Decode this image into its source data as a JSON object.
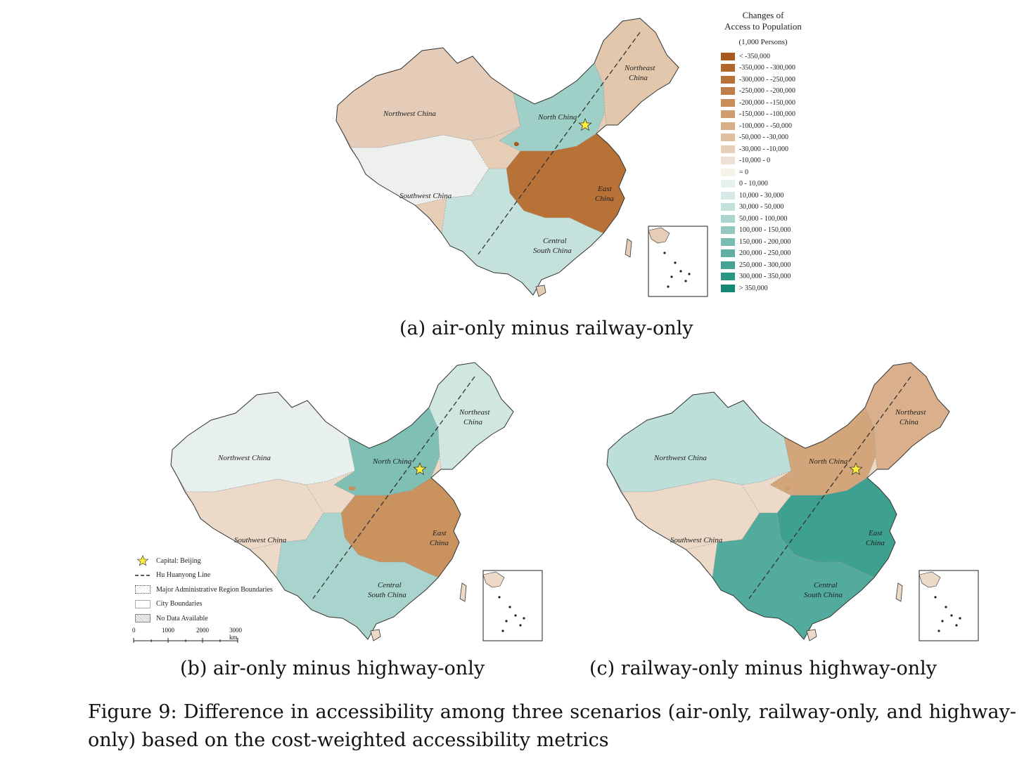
{
  "legend": {
    "title_line1": "Changes of",
    "title_line2": "Access to Population",
    "unit": "(1,000 Persons)",
    "classes": [
      {
        "label": "< -350,000",
        "color": "#a85a1e"
      },
      {
        "label": "-350,000 - -300,000",
        "color": "#b0672b"
      },
      {
        "label": "-300,000 - -250,000",
        "color": "#b87238"
      },
      {
        "label": "-250,000 - -200,000",
        "color": "#c07f48"
      },
      {
        "label": "-200,000 - -150,000",
        "color": "#c98d5a"
      },
      {
        "label": "-150,000 - -100,000",
        "color": "#d19d70"
      },
      {
        "label": "-100,000 - -50,000",
        "color": "#d9ae87"
      },
      {
        "label": "-50,000 - -30,000",
        "color": "#e0bfa0"
      },
      {
        "label": "-30,000 - -10,000",
        "color": "#e7cfb9"
      },
      {
        "label": "-10,000 - 0",
        "color": "#eee0d2"
      },
      {
        "label": "= 0",
        "color": "#f5f2ec"
      },
      {
        "label": "0 - 10,000",
        "color": "#e9f1f0"
      },
      {
        "label": "10,000 - 30,000",
        "color": "#d6e9e6"
      },
      {
        "label": "30,000 - 50,000",
        "color": "#c3e0db"
      },
      {
        "label": "50,000 - 100,000",
        "color": "#aad4ce"
      },
      {
        "label": "100,000 - 150,000",
        "color": "#92c8c0"
      },
      {
        "label": "150,000 - 200,000",
        "color": "#79bcb2"
      },
      {
        "label": "200,000 - 250,000",
        "color": "#5fb0a3"
      },
      {
        "label": "250,000 - 300,000",
        "color": "#44a394"
      },
      {
        "label": "300,000 - 350,000",
        "color": "#2a9684"
      },
      {
        "label": "> 350,000",
        "color": "#138875"
      }
    ]
  },
  "region_labels": {
    "northwest": "Northwest China",
    "north": "North China",
    "northeast_1": "Northeast",
    "northeast_2": "China",
    "southwest": "Southwest China",
    "east_1": "East",
    "east_2": "China",
    "central_1": "Central",
    "central_2": "South China"
  },
  "maps": [
    {
      "caption": "(a) air-only minus railway-only",
      "overall": "#e6cdb6",
      "west": "#e4ccb8",
      "tibet": "#eef0ee",
      "north": "#9fd0c7",
      "east": "#b87136",
      "south": "#c5e1dc",
      "northeast": "#e2c7ad"
    },
    {
      "caption": "(b) air-only minus highway-only",
      "overall": "#ecd9c8",
      "west": "#e8f0ee",
      "tibet": "#ecd9c8",
      "north": "#7fbfb4",
      "east": "#c9925f",
      "south": "#a9d4cd",
      "northeast": "#cfe6e1"
    },
    {
      "caption": "(c) railway-only minus highway-only",
      "overall": "#ecd9c8",
      "west": "#bcdfd9",
      "tibet": "#ecd9c8",
      "north": "#d3a57a",
      "east": "#3ea08f",
      "south": "#52ab9d",
      "northeast": "#d9b08b"
    }
  ],
  "reference_legend": {
    "capital": "Capital: Beijing",
    "hu_line": "Hu Huanyong Line",
    "admin": "Major Administrative Region Boundaries",
    "city": "City Boundaries",
    "nodata": "No Data Available"
  },
  "scale": {
    "t0": "0",
    "t1": "1000",
    "t2": "2000",
    "t3": "3000 km"
  },
  "figure_caption": "Figure 9: Difference in accessibility among three scenarios (air-only, railway-only, and highway-only) based on the cost-weighted accessibility metrics"
}
